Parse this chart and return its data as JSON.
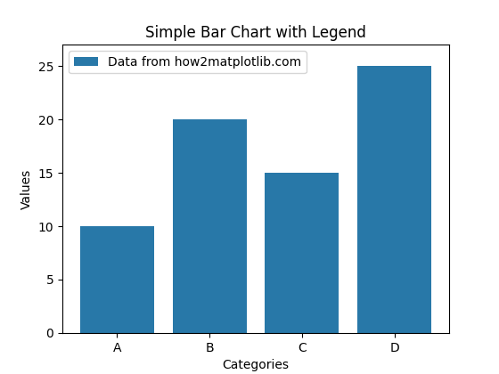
{
  "categories": [
    "A",
    "B",
    "C",
    "D"
  ],
  "values": [
    10,
    20,
    15,
    25
  ],
  "bar_color": "#2878a8",
  "title": "Simple Bar Chart with Legend",
  "xlabel": "Categories",
  "ylabel": "Values",
  "legend_label": "Data from how2matplotlib.com",
  "ylim": [
    0,
    27
  ],
  "background_color": "#ffffff"
}
